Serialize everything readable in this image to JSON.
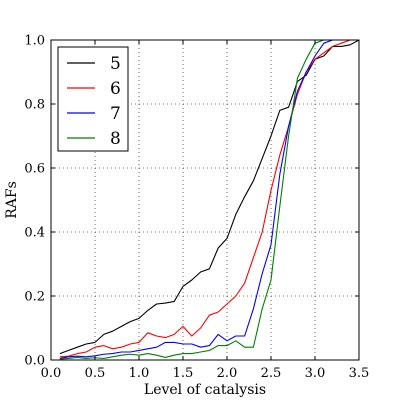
{
  "chart_data": {
    "type": "line",
    "title": "",
    "xlabel": "Level of catalysis",
    "ylabel": "RAFs",
    "xlim": [
      0.0,
      3.5
    ],
    "ylim": [
      0.0,
      1.0
    ],
    "xticks": [
      0.0,
      0.5,
      1.0,
      1.5,
      2.0,
      2.5,
      3.0,
      3.5
    ],
    "yticks": [
      0.0,
      0.2,
      0.4,
      0.6,
      0.8,
      1.0
    ],
    "xtick_labels": [
      "0.0",
      "0.5",
      "1.0",
      "1.5",
      "2.0",
      "2.5",
      "3.0",
      "3.5"
    ],
    "ytick_labels": [
      "0.0",
      "0.2",
      "0.4",
      "0.6",
      "0.8",
      "1.0"
    ],
    "grid": "dotted",
    "legend_position": "top-left",
    "x": [
      0.1,
      0.2,
      0.3,
      0.4,
      0.5,
      0.6,
      0.7,
      0.8,
      0.9,
      1.0,
      1.1,
      1.2,
      1.3,
      1.4,
      1.5,
      1.6,
      1.7,
      1.8,
      1.9,
      2.0,
      2.1,
      2.2,
      2.3,
      2.4,
      2.5,
      2.6,
      2.7,
      2.8,
      2.9,
      3.0,
      3.1,
      3.2,
      3.3,
      3.4,
      3.5
    ],
    "series": [
      {
        "name": "5",
        "color": "#000000",
        "values": [
          0.02,
          0.03,
          0.04,
          0.05,
          0.055,
          0.08,
          0.09,
          0.105,
          0.12,
          0.13,
          0.155,
          0.175,
          0.178,
          0.183,
          0.23,
          0.25,
          0.275,
          0.285,
          0.35,
          0.38,
          0.455,
          0.51,
          0.56,
          0.63,
          0.7,
          0.78,
          0.79,
          0.87,
          0.89,
          0.94,
          0.95,
          0.98,
          0.98,
          0.985,
          1.0
        ]
      },
      {
        "name": "6",
        "color": "#ff0000",
        "values": [
          0.01,
          0.012,
          0.02,
          0.025,
          0.04,
          0.045,
          0.035,
          0.04,
          0.05,
          0.055,
          0.085,
          0.075,
          0.07,
          0.08,
          0.105,
          0.075,
          0.1,
          0.14,
          0.15,
          0.175,
          0.2,
          0.24,
          0.32,
          0.4,
          0.53,
          0.64,
          0.73,
          0.83,
          0.9,
          0.94,
          0.96,
          0.98,
          0.99,
          1.0,
          1.0
        ]
      },
      {
        "name": "7",
        "color": "#0000ff",
        "values": [
          0.005,
          0.01,
          0.012,
          0.01,
          0.013,
          0.018,
          0.02,
          0.025,
          0.025,
          0.03,
          0.035,
          0.04,
          0.055,
          0.055,
          0.05,
          0.05,
          0.04,
          0.045,
          0.08,
          0.06,
          0.075,
          0.075,
          0.16,
          0.27,
          0.36,
          0.58,
          0.73,
          0.84,
          0.9,
          0.95,
          0.99,
          1.0,
          1.0,
          1.0,
          1.0
        ]
      },
      {
        "name": "8",
        "color": "#008000",
        "values": [
          0.003,
          0.005,
          0.008,
          0.005,
          0.007,
          0.005,
          0.01,
          0.015,
          0.018,
          0.015,
          0.02,
          0.015,
          0.008,
          0.015,
          0.02,
          0.02,
          0.025,
          0.03,
          0.045,
          0.045,
          0.06,
          0.04,
          0.04,
          0.16,
          0.25,
          0.48,
          0.7,
          0.88,
          0.94,
          0.99,
          1.0,
          1.0,
          1.0,
          1.0,
          1.0
        ]
      }
    ]
  }
}
